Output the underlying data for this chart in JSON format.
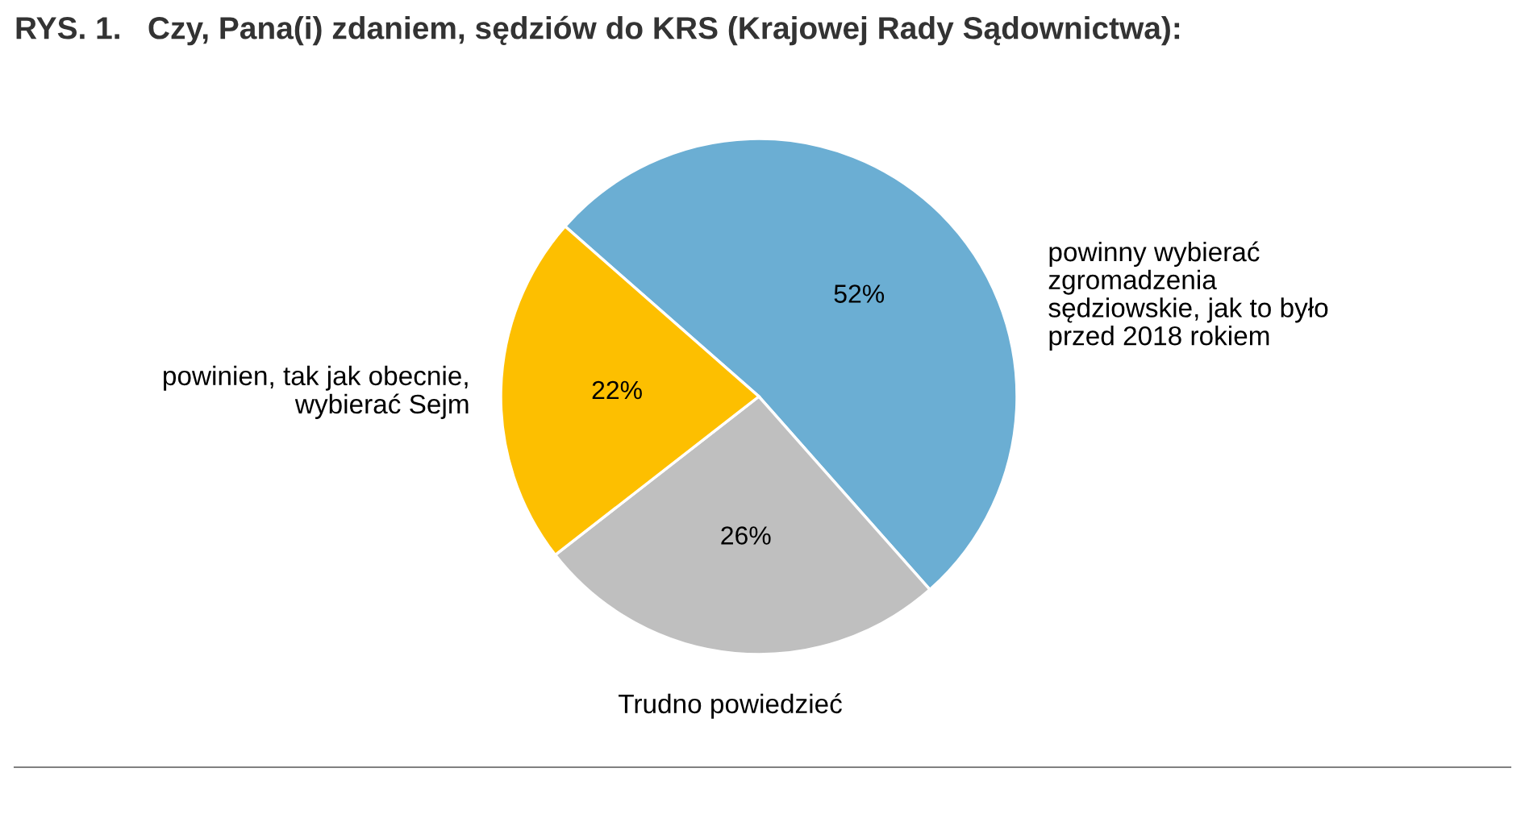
{
  "chart_data": {
    "type": "pie",
    "title": "RYS. 1.   Czy, Pana(i) zdaniem, sędziów do KRS (Krajowej Rady Sądownictwa):",
    "categories": [
      "powinny wybierać\nzgromadzenia\nsędziowskie, jak to było\nprzed 2018 rokiem",
      "Trudno powiedzieć",
      "powinien, tak jak obecnie,\nwybierać Sejm"
    ],
    "values": [
      52,
      26,
      22
    ],
    "value_labels": [
      "52%",
      "26%",
      "22%"
    ],
    "colors": [
      "#6baed3",
      "#bfbfbf",
      "#fdbf00"
    ]
  }
}
